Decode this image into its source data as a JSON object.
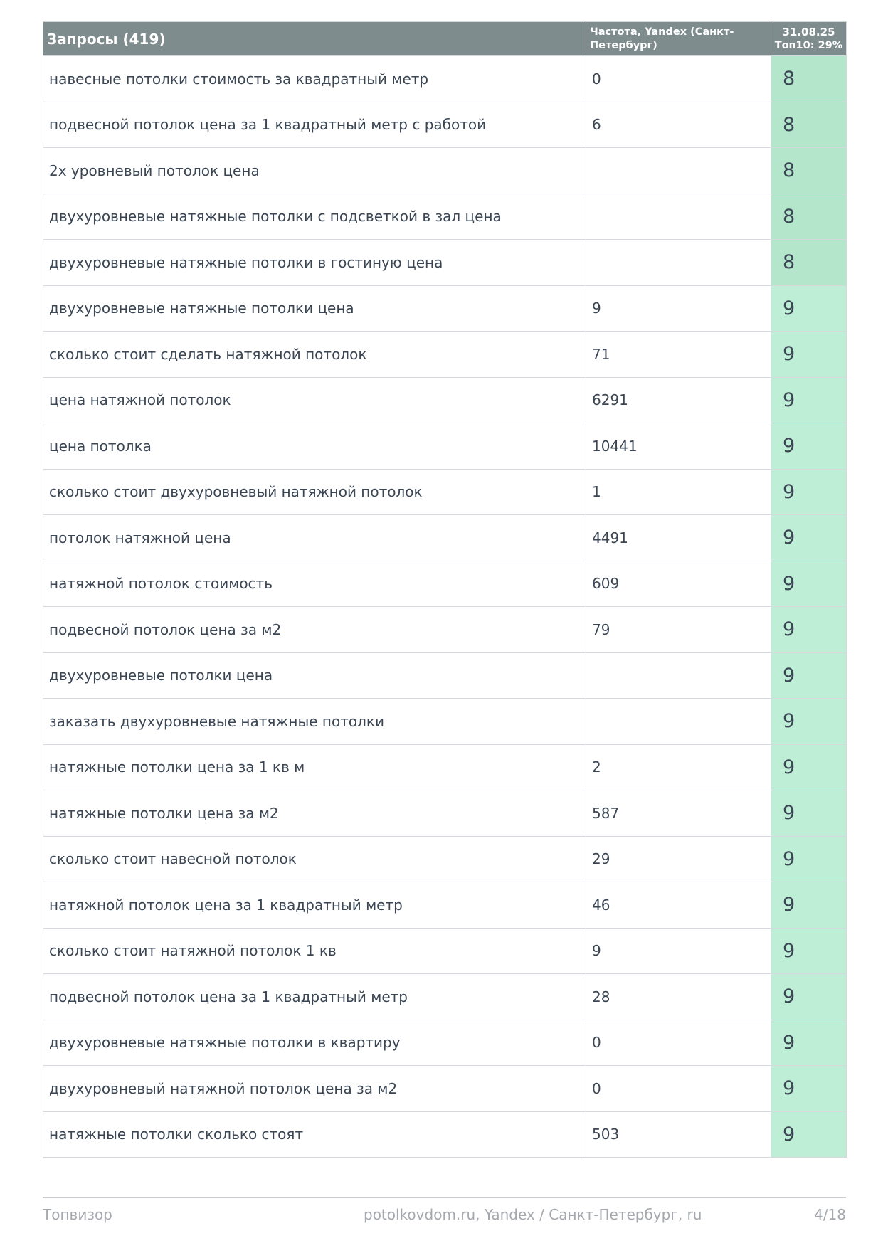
{
  "table": {
    "headers": {
      "queries": "Запросы (419)",
      "frequency": "Частота, Yandex (Санкт-Петербург)",
      "date": "31.08.25",
      "top10": "Топ10: 29%"
    },
    "rows": [
      {
        "query": "навесные потолки стоимость за квадратный метр",
        "frequency": "0",
        "position": "8"
      },
      {
        "query": "подвесной потолок цена за 1 квадратный метр с работой",
        "frequency": "6",
        "position": "8"
      },
      {
        "query": "2х уровневый потолок цена",
        "frequency": "",
        "position": "8"
      },
      {
        "query": "двухуровневые натяжные потолки с подсветкой в зал цена",
        "frequency": "",
        "position": "8"
      },
      {
        "query": "двухуровневые натяжные потолки в гостиную цена",
        "frequency": "",
        "position": "8"
      },
      {
        "query": "двухуровневые натяжные потолки цена",
        "frequency": "9",
        "position": "9"
      },
      {
        "query": "сколько стоит сделать натяжной потолок",
        "frequency": "71",
        "position": "9"
      },
      {
        "query": "цена натяжной потолок",
        "frequency": "6291",
        "position": "9"
      },
      {
        "query": "цена потолка",
        "frequency": "10441",
        "position": "9"
      },
      {
        "query": "сколько стоит двухуровневый натяжной потолок",
        "frequency": "1",
        "position": "9"
      },
      {
        "query": "потолок натяжной цена",
        "frequency": "4491",
        "position": "9"
      },
      {
        "query": "натяжной потолок стоимость",
        "frequency": "609",
        "position": "9"
      },
      {
        "query": "подвесной потолок цена за м2",
        "frequency": "79",
        "position": "9"
      },
      {
        "query": "двухуровневые потолки цена",
        "frequency": "",
        "position": "9"
      },
      {
        "query": "заказать двухуровневые натяжные потолки",
        "frequency": "",
        "position": "9"
      },
      {
        "query": "натяжные потолки цена за 1 кв м",
        "frequency": "2",
        "position": "9"
      },
      {
        "query": "натяжные потолки цена за м2",
        "frequency": "587",
        "position": "9"
      },
      {
        "query": "сколько стоит навесной потолок",
        "frequency": "29",
        "position": "9"
      },
      {
        "query": "натяжной потолок цена за 1 квадратный метр",
        "frequency": "46",
        "position": "9"
      },
      {
        "query": "сколько стоит натяжной потолок 1 кв",
        "frequency": "9",
        "position": "9"
      },
      {
        "query": "подвесной потолок цена за 1 квадратный метр",
        "frequency": "28",
        "position": "9"
      },
      {
        "query": "двухуровневые натяжные потолки в квартиру",
        "frequency": "0",
        "position": "9"
      },
      {
        "query": "двухуровневый натяжной потолок цена за м2",
        "frequency": "0",
        "position": "9"
      },
      {
        "query": "натяжные потолки сколько стоят",
        "frequency": "503",
        "position": "9"
      }
    ]
  },
  "footer": {
    "brand": "Топвизор",
    "project": "potolkovdom.ru, Yandex / Санкт-Петербург, ru",
    "page": "4/18"
  },
  "colors": {
    "header_bg": "#7f8c8d",
    "position_8_bg": "#b4e6cc",
    "position_9_bg": "#bfeed6"
  }
}
